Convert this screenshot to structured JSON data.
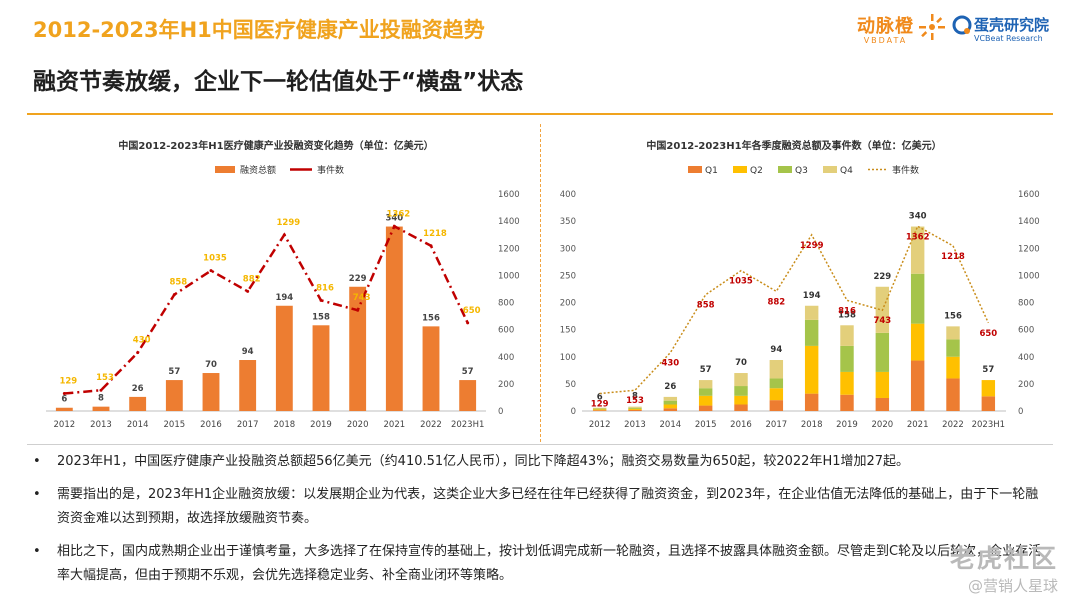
{
  "header": {
    "title": "2012-2023年H1中国医疗健康产业投融资趋势",
    "subtitle": "融资节奏放缓，企业下一轮估值处于“横盘”状态"
  },
  "logos": {
    "vbdata_cn": "动脉橙",
    "vbdata_en": "VBDATA",
    "vcbeat_cn": "蛋壳研究院",
    "vcbeat_en": "VCBeat Research"
  },
  "chart_data": [
    {
      "type": "bar",
      "title": "中国2012-2023年H1医疗健康产业投融资变化趋势（单位：亿美元）",
      "categories": [
        "2012",
        "2013",
        "2014",
        "2015",
        "2016",
        "2017",
        "2018",
        "2019",
        "2020",
        "2021",
        "2022",
        "2023H1"
      ],
      "series": [
        {
          "name": "融资总额",
          "type": "bar",
          "axis": "left",
          "values": [
            6,
            8,
            26,
            57,
            70,
            94,
            194,
            158,
            229,
            340,
            156,
            57
          ]
        },
        {
          "name": "事件数",
          "type": "line",
          "axis": "right",
          "values": [
            129,
            153,
            430,
            858,
            1035,
            882,
            1299,
            816,
            743,
            1362,
            1218,
            650
          ]
        }
      ],
      "ylim": [
        0,
        400
      ],
      "y2lim": [
        0,
        1600
      ],
      "y2ticks": [
        0,
        200,
        400,
        600,
        800,
        1000,
        1200,
        1400,
        1600
      ],
      "legend": "top-center",
      "colors": {
        "bar": "#ed7d31",
        "line": "#c00000",
        "bar_label": "#444444",
        "line_label": "#f5b700"
      }
    },
    {
      "type": "bar",
      "stacked": true,
      "title": "中国2012-2023H1年各季度融资总额及事件数（单位：亿美元）",
      "categories": [
        "2012",
        "2013",
        "2014",
        "2015",
        "2016",
        "2017",
        "2018",
        "2019",
        "2020",
        "2021",
        "2022",
        "2023H1"
      ],
      "series": [
        {
          "name": "Q1",
          "type": "bar",
          "values": [
            1.5,
            2,
            5,
            10,
            12,
            20,
            32,
            30,
            24,
            93,
            60,
            27
          ]
        },
        {
          "name": "Q2",
          "type": "bar",
          "values": [
            1.5,
            2,
            7,
            18,
            16,
            22,
            88,
            42,
            48,
            68,
            40,
            30
          ]
        },
        {
          "name": "Q3",
          "type": "bar",
          "values": [
            1.5,
            2,
            7,
            14,
            18,
            18,
            48,
            48,
            72,
            92,
            32,
            0
          ]
        },
        {
          "name": "Q4",
          "type": "bar",
          "values": [
            1.5,
            2,
            7,
            15,
            24,
            34,
            26,
            38,
            85,
            87,
            24,
            0
          ]
        },
        {
          "name": "事件数",
          "type": "line",
          "axis": "right",
          "values": [
            129,
            153,
            430,
            858,
            1035,
            882,
            1299,
            816,
            743,
            1362,
            1218,
            650
          ]
        }
      ],
      "totals": [
        6,
        8,
        26,
        57,
        70,
        94,
        194,
        158,
        229,
        340,
        156,
        57
      ],
      "ylim": [
        0,
        400
      ],
      "yticks": [
        0,
        50,
        100,
        150,
        200,
        250,
        300,
        350,
        400
      ],
      "y2lim": [
        0,
        1600
      ],
      "y2ticks": [
        0,
        200,
        400,
        600,
        800,
        1000,
        1200,
        1400,
        1600
      ],
      "legend": "top-center",
      "colors": {
        "Q1": "#ed7d31",
        "Q2": "#ffc000",
        "Q3": "#a5c44a",
        "Q4": "#e3cf7b",
        "line": "#c98d1a",
        "total_label": "#333333",
        "count_label": "#c00000"
      }
    }
  ],
  "bullets": [
    {
      "marker": "•",
      "text": "2023年H1，中国医疗健康产业投融资总额超56亿美元（约410.51亿人民币），同比下降超43%；融资交易数量为650起，较2022年H1增加27起。"
    },
    {
      "marker": "•",
      "text": "需要指出的是，2023年H1企业融资放缓：以发展期企业为代表，这类企业大多已经在往年已经获得了融资资金，到2023年，在企业估值无法降低的基础上，由于下一轮融资资金难以达到预期，故选择放缓融资节奏。"
    },
    {
      "marker": "•",
      "text": "相比之下，国内成熟期企业出于谨慎考量，大多选择了在保持宣传的基础上，按计划低调完成新一轮融资，且选择不披露具体融资金额。尽管走到C轮及以后轮次，企业存活率大幅提高，但由于预期不乐观，会优先选择稳定业务、补全商业闭环等策略。"
    }
  ],
  "watermark": {
    "line1": "老虎社区",
    "line2": "@营销人星球"
  }
}
